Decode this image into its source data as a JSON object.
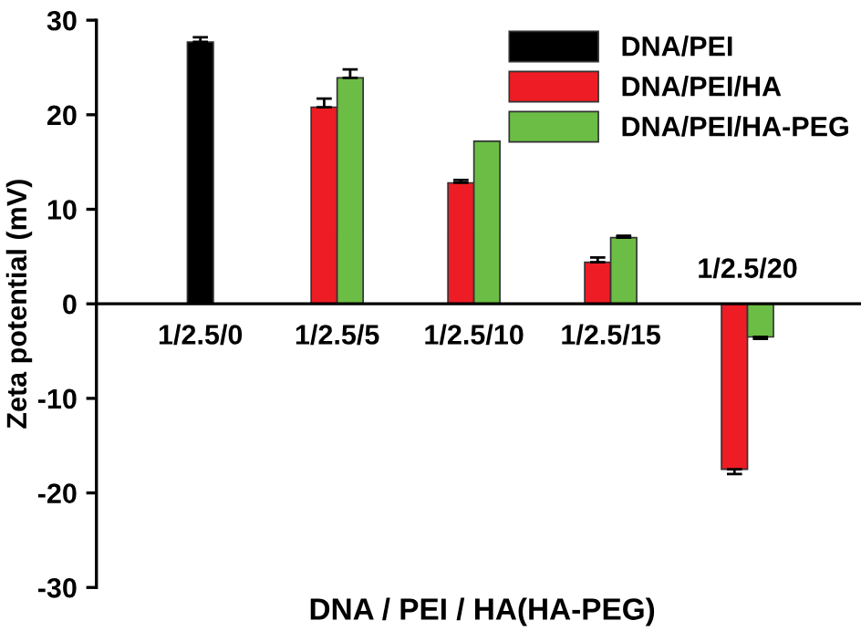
{
  "chart_data": {
    "type": "bar",
    "xlabel": "DNA / PEI / HA(HA-PEG)",
    "ylabel": "Zeta potential (mV)",
    "categories": [
      "1/2.5/0",
      "1/2.5/5",
      "1/2.5/10",
      "1/2.5/15",
      "1/2.5/20"
    ],
    "series": [
      {
        "name": "DNA/PEI",
        "color": "#000000",
        "values": [
          27.7,
          null,
          null,
          null,
          null
        ],
        "errors": [
          0.5,
          null,
          null,
          null,
          null
        ]
      },
      {
        "name": "DNA/PEI/HA",
        "color": "#ee1c24",
        "values": [
          null,
          20.8,
          12.8,
          4.4,
          -17.5
        ],
        "errors": [
          null,
          0.9,
          0.3,
          0.5,
          0.5
        ]
      },
      {
        "name": "DNA/PEI/HA-PEG",
        "color": "#6cbd45",
        "values": [
          null,
          23.9,
          17.2,
          7.0,
          -3.5
        ],
        "errors": [
          null,
          0.9,
          null,
          0.2,
          0.2
        ]
      }
    ],
    "ylim": [
      -30,
      30
    ],
    "yticks": [
      -30,
      -20,
      -10,
      0,
      10,
      20,
      30
    ],
    "grid": false,
    "legend": "top right"
  }
}
